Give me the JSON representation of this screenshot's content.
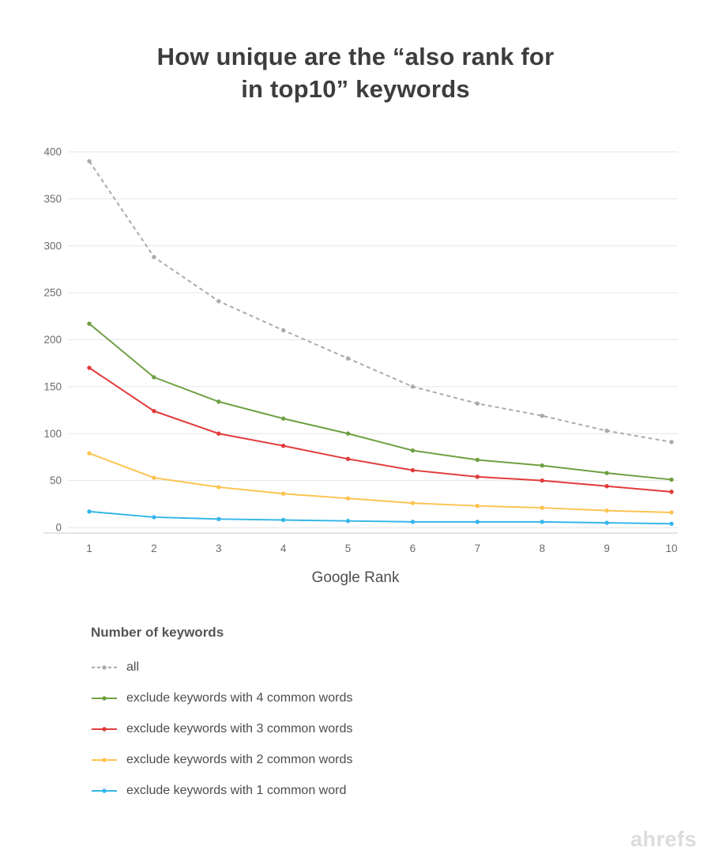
{
  "chart_data": {
    "type": "line",
    "title": "How unique are the “also rank for in top10” keywords",
    "title_line1": "How unique are the “also rank for",
    "title_line2": "in top10” keywords",
    "xlabel": "Google Rank",
    "ylabel": "",
    "legend_title": "Number of keywords",
    "legend_position": "bottom-left",
    "grid": "horizontal",
    "x": [
      1,
      2,
      3,
      4,
      5,
      6,
      7,
      8,
      9,
      10
    ],
    "ylim": [
      0,
      400
    ],
    "yticks": [
      0,
      50,
      100,
      150,
      200,
      250,
      300,
      350,
      400
    ],
    "series": [
      {
        "name": "all",
        "label": "all",
        "color": "#ababab",
        "dash": "dashed",
        "values": [
          390,
          288,
          241,
          210,
          180,
          150,
          132,
          119,
          103,
          91
        ]
      },
      {
        "name": "exclude-4-common-words",
        "label": "exclude keywords with 4 common words",
        "color": "#6fa043",
        "dash": "solid",
        "values": [
          217,
          160,
          134,
          116,
          100,
          82,
          72,
          66,
          58,
          51
        ]
      },
      {
        "name": "exclude-3-common-words",
        "label": "exclude keywords with 3 common words",
        "color": "#e23b3b",
        "dash": "solid",
        "values": [
          170,
          124,
          100,
          87,
          73,
          61,
          54,
          50,
          44,
          38
        ]
      },
      {
        "name": "exclude-2-common-words",
        "label": "exclude keywords with 2 common words",
        "color": "#fcc451",
        "dash": "solid",
        "values": [
          79,
          53,
          43,
          36,
          31,
          26,
          23,
          21,
          18,
          16
        ]
      },
      {
        "name": "exclude-1-common-word",
        "label": "exclude keywords with 1 common word",
        "color": "#35b6e9",
        "dash": "solid",
        "values": [
          17,
          11,
          9,
          8,
          7,
          6,
          6,
          6,
          5,
          4
        ]
      }
    ]
  },
  "footer": {
    "logo_text": "ahrefs"
  }
}
